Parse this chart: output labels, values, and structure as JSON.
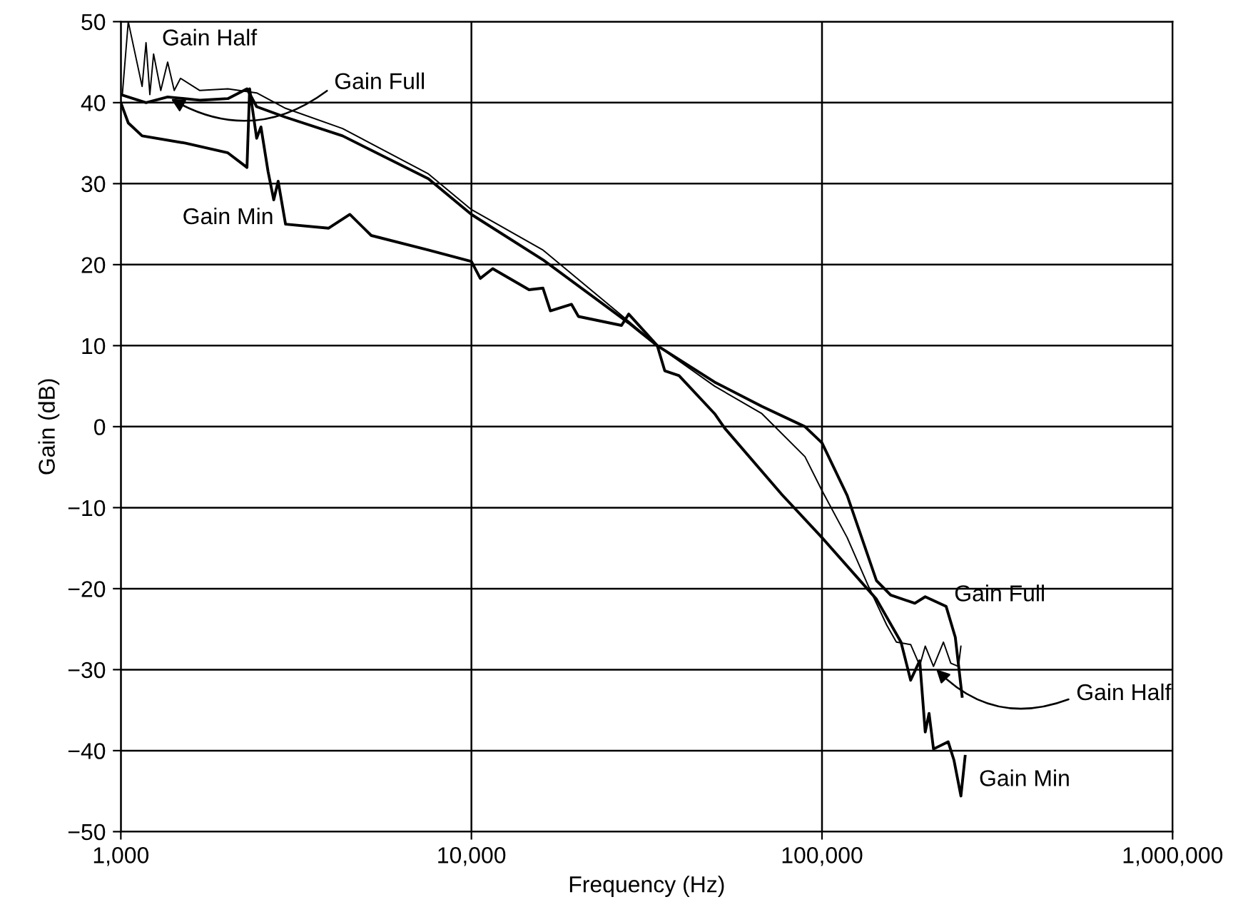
{
  "chart_data": {
    "type": "line",
    "xlabel": "Frequency (Hz)",
    "ylabel": "Gain (dB)",
    "log": "x",
    "xlim": [
      1000,
      1000000
    ],
    "xticks": [
      {
        "value": 1000,
        "label": "1,000"
      },
      {
        "value": 10000,
        "label": "10,000"
      },
      {
        "value": 100000,
        "label": "100,000"
      },
      {
        "value": 1000000,
        "label": "1,000,000"
      }
    ],
    "ylim": [
      -50,
      50
    ],
    "yticks": [
      {
        "value": -50,
        "label": "−50"
      },
      {
        "value": -40,
        "label": "−40"
      },
      {
        "value": -30,
        "label": "−30"
      },
      {
        "value": -20,
        "label": "−20"
      },
      {
        "value": -10,
        "label": "−10"
      },
      0,
      10,
      20,
      30,
      40,
      50
    ],
    "grid": true,
    "legend": false,
    "marker": "none",
    "line_style": "solid",
    "series": [
      {
        "name": "Gain Full",
        "color": "#000000",
        "x": [
          1000,
          1180,
          1360,
          1680,
          2020,
          2290,
          2440,
          2950,
          4290,
          7540,
          10000,
          16000,
          28100,
          33900,
          49400,
          67400,
          89400,
          100000,
          118000,
          143000,
          157000,
          184000,
          197000,
          226000,
          240000,
          251000
        ],
        "values": [
          41,
          40,
          40.7,
          40.3,
          40.5,
          41.7,
          39.5,
          38.2,
          35.9,
          30.6,
          26.2,
          20.6,
          12.8,
          10,
          5.5,
          2.5,
          0,
          -2,
          -8.5,
          -19,
          -20.8,
          -21.8,
          -21,
          -22.2,
          -26,
          -33.3
        ]
      },
      {
        "name": "Gain Half",
        "color": "#000000",
        "x": [
          1010,
          1050,
          1150,
          1180,
          1210,
          1240,
          1300,
          1360,
          1420,
          1480,
          1680,
          2020,
          2440,
          2950,
          4290,
          7540,
          10000,
          16000,
          28100,
          33900,
          49400,
          67400,
          89400,
          100000,
          118000,
          135000,
          153000,
          163000,
          179000,
          190000,
          197000,
          208000,
          222000,
          233000,
          245000,
          249000
        ],
        "values": [
          41,
          50,
          42,
          47.4,
          41,
          46,
          41.5,
          45,
          41.5,
          43,
          41.5,
          41.7,
          41.2,
          39.3,
          36.8,
          31.2,
          26.8,
          21.8,
          13,
          10,
          5,
          1.6,
          -3.7,
          -7.9,
          -13.7,
          -19.5,
          -24.5,
          -26.6,
          -26.9,
          -29.5,
          -27.1,
          -29.6,
          -26.6,
          -29.2,
          -29.6,
          -27.1
        ]
      },
      {
        "name": "Gain Min",
        "color": "#000000",
        "x": [
          1000,
          1050,
          1150,
          1530,
          2020,
          2290,
          2330,
          2440,
          2510,
          2630,
          2730,
          2810,
          2950,
          3910,
          4500,
          5180,
          7540,
          10000,
          10600,
          11500,
          14600,
          16000,
          16800,
          19300,
          20200,
          26800,
          28100,
          33900,
          35600,
          39100,
          49400,
          52800,
          76900,
          100000,
          143000,
          168000,
          179000,
          190000,
          197000,
          202000,
          208000,
          229000,
          238000,
          249000,
          256000
        ],
        "values": [
          40,
          37.5,
          35.9,
          35,
          33.8,
          32,
          41.7,
          35.6,
          37,
          31.5,
          28,
          30.3,
          25,
          24.5,
          26.2,
          23.6,
          21.8,
          20.4,
          18.3,
          19.5,
          16.9,
          17.1,
          14.3,
          15.1,
          13.6,
          12.5,
          13.9,
          10,
          6.9,
          6.3,
          1.6,
          -0.2,
          -8.4,
          -13.7,
          -21.3,
          -26.6,
          -31.3,
          -28.9,
          -37.7,
          -35.4,
          -39.8,
          -38.9,
          -41.2,
          -45.6,
          -40.7
        ]
      }
    ],
    "annotations": [
      {
        "text": "Gain Half",
        "x": 1050,
        "y": 50
      },
      {
        "text": "Gain Full",
        "x": 1360,
        "y": 40.7
      },
      {
        "text": "Gain Min",
        "x": 2950,
        "y": 25
      }
    ]
  }
}
